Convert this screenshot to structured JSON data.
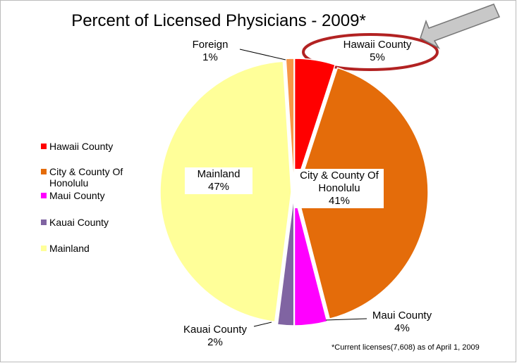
{
  "chart_data": {
    "type": "pie",
    "title": "Percent of Licensed Physicians - 2009*",
    "categories": [
      "Hawaii County",
      "City & County Of Honolulu",
      "Maui County",
      "Kauai County",
      "Mainland",
      "Foreign"
    ],
    "values": [
      5,
      41,
      4,
      2,
      47,
      1
    ],
    "value_labels": [
      "5%",
      "41%",
      "4%",
      "2%",
      "47%",
      "1%"
    ],
    "colors": [
      "#ff0000",
      "#e46c0a",
      "#ff00ff",
      "#8064a2",
      "#ffff99",
      "#f79646"
    ],
    "legend": [
      "Hawaii County",
      "City & County Of Honolulu",
      "Maui County",
      "Kauai County",
      "Mainland"
    ],
    "footnote": "*Current licenses(7,608) as of April 1, 2009"
  }
}
